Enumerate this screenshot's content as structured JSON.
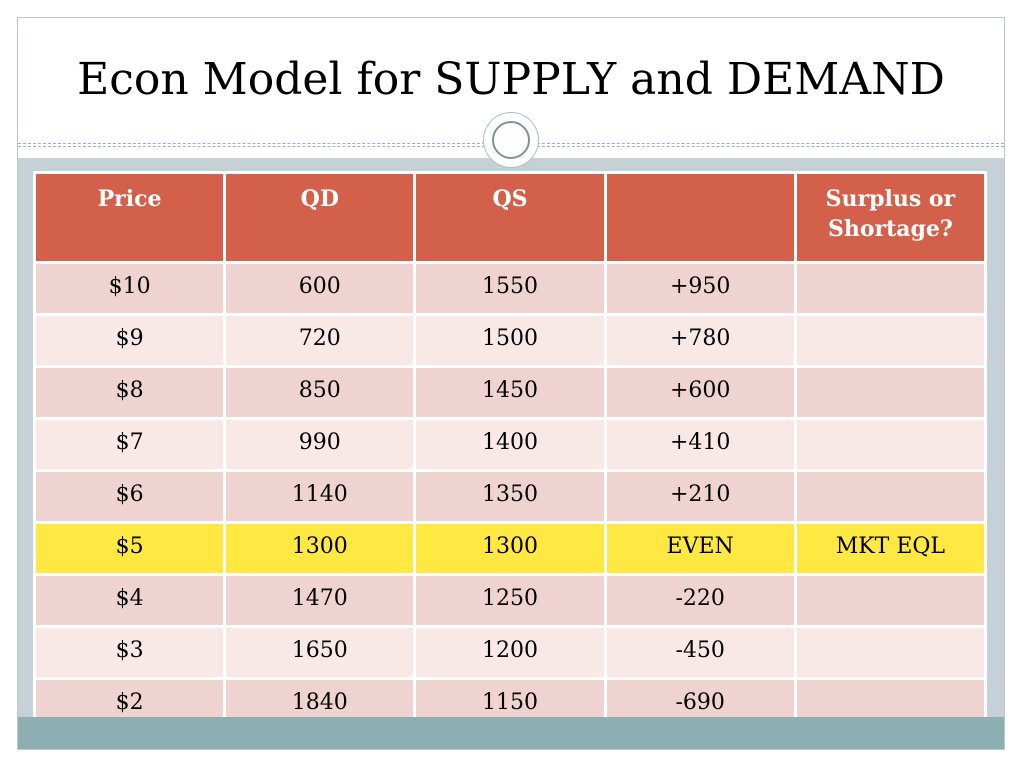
{
  "title": "Econ Model for SUPPLY and DEMAND",
  "table": {
    "headers": [
      "Price",
      "QD",
      "QS",
      "",
      "Surplus or Shortage?"
    ],
    "rows": [
      [
        "$10",
        "600",
        "1550",
        "+950",
        ""
      ],
      [
        "$9",
        "720",
        "1500",
        "+780",
        ""
      ],
      [
        "$8",
        "850",
        "1450",
        "+600",
        ""
      ],
      [
        "$7",
        "990",
        "1400",
        "+410",
        ""
      ],
      [
        "$6",
        "1140",
        "1350",
        "+210",
        ""
      ],
      [
        "$5",
        "1300",
        "1300",
        "EVEN",
        "MKT EQL"
      ],
      [
        "$4",
        "1470",
        "1250",
        "-220",
        ""
      ],
      [
        "$3",
        "1650",
        "1200",
        "-450",
        ""
      ],
      [
        "$2",
        "1840",
        "1150",
        "-690",
        ""
      ]
    ],
    "highlighted_row": 5
  },
  "colors": {
    "header": "#d3604a",
    "row_odd": "#efd3d0",
    "row_even": "#f8e9e7",
    "highlight": "#ffe841"
  }
}
